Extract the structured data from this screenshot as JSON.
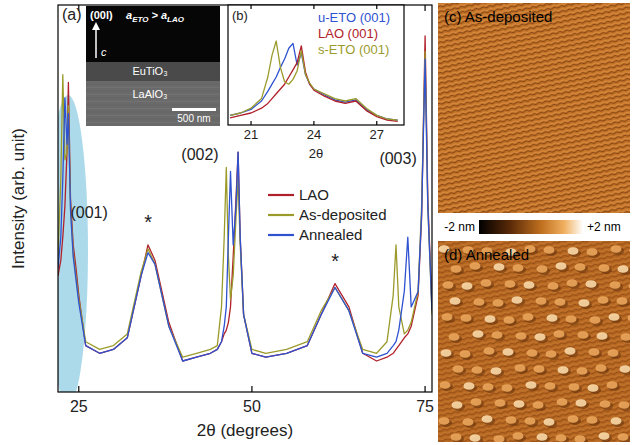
{
  "chart_data": [
    {
      "type": "line",
      "title": "(a)",
      "x_label": "2θ (degrees)",
      "y_label": "Intensity (arb. unit)",
      "xlim": [
        22,
        76
      ],
      "xticks": [
        25,
        50,
        75
      ],
      "ylim": [
        0,
        100
      ],
      "tick_labels": "x",
      "legend": "right",
      "x": [
        22,
        22.4,
        22.7,
        23,
        23.3,
        23.5,
        23.8,
        24.2,
        24.6,
        25,
        26,
        28,
        30,
        32,
        34,
        35,
        36,
        38,
        40,
        42,
        44,
        45,
        45.6,
        46,
        46.3,
        46.6,
        46.9,
        47.3,
        47.7,
        48,
        48.3,
        48.8,
        50,
        52,
        55,
        58,
        60,
        62,
        64,
        66,
        68,
        69.5,
        70.4,
        70.8,
        71.2,
        72,
        72.5,
        73,
        74,
        74.5,
        75,
        75.4,
        76
      ],
      "series": [
        {
          "name": "LAO",
          "color": "#b0202a",
          "values": [
            30,
            34,
            40,
            48,
            62,
            80,
            50,
            38,
            32,
            25,
            12,
            10,
            11,
            14,
            30,
            38,
            34,
            18,
            8,
            9,
            10,
            11,
            13,
            15,
            16,
            18,
            22,
            35,
            50,
            62,
            40,
            20,
            10,
            9,
            10,
            12,
            20,
            28,
            22,
            10,
            8,
            9,
            10,
            11,
            12,
            14,
            15,
            17,
            25,
            45,
            92,
            50,
            22
          ]
        },
        {
          "name": "As-deposited",
          "color": "#9b9b2c",
          "values": [
            35,
            55,
            82,
            60,
            62,
            74,
            48,
            36,
            30,
            24,
            13,
            11,
            12,
            15,
            31,
            37,
            33,
            17,
            9,
            10,
            11,
            12,
            22,
            40,
            58,
            35,
            24,
            30,
            45,
            55,
            38,
            20,
            11,
            10,
            11,
            13,
            21,
            27,
            21,
            11,
            10,
            13,
            25,
            38,
            22,
            15,
            16,
            18,
            26,
            48,
            88,
            48,
            20
          ]
        },
        {
          "name": "Annealed",
          "color": "#2f52d0",
          "values": [
            32,
            40,
            55,
            76,
            64,
            72,
            47,
            35,
            29,
            23,
            12,
            10,
            11,
            14,
            30,
            36,
            33,
            17,
            8,
            9,
            10,
            11,
            13,
            17,
            22,
            40,
            57,
            38,
            48,
            62,
            40,
            20,
            10,
            9,
            10,
            12,
            20,
            27,
            21,
            10,
            9,
            10,
            12,
            13,
            16,
            26,
            40,
            22,
            26,
            46,
            86,
            48,
            21
          ]
        }
      ],
      "annotations": [
        {
          "text": "(001)",
          "x": 26.5,
          "y": 45
        },
        {
          "text": "(002)",
          "x": 42.5,
          "y": 60
        },
        {
          "text": "(003)",
          "x": 71.1,
          "y": 59
        },
        {
          "text": "*",
          "x": 35,
          "y": 42
        },
        {
          "text": "*",
          "x": 62,
          "y": 32
        }
      ],
      "sem_inset": {
        "direction": "(00l)",
        "lattice": {
          "left": "a",
          "left_sub": "ETO",
          "relation": ">",
          "right": "a",
          "right_sub": "LAO"
        },
        "film": "EuTiO₃",
        "substrate": "LaAlO₃",
        "scale_bar": "500 nm",
        "axis": "c"
      }
    },
    {
      "type": "line",
      "title": "(b)",
      "x_label": "2θ",
      "xlim": [
        19.9,
        28.3
      ],
      "xticks": [
        21,
        24,
        27
      ],
      "ylim": [
        0,
        100
      ],
      "tick_labels": "x",
      "legend": "upper right",
      "x": [
        20,
        20.5,
        21,
        21.5,
        21.8,
        22,
        22.2,
        22.4,
        22.6,
        22.8,
        23,
        23.2,
        23.4,
        23.6,
        23.8,
        24,
        24.5,
        25,
        25.5,
        26,
        26.5,
        27,
        27.5,
        28
      ],
      "series": [
        {
          "name": "u-ETO (001)",
          "color": "#2f52d0",
          "values": [
            8,
            10,
            13,
            20,
            28,
            34,
            40,
            48,
            55,
            64,
            68,
            50,
            60,
            42,
            34,
            30,
            25,
            21,
            19,
            21,
            13,
            8,
            5,
            4
          ]
        },
        {
          "name": "LAO (001)",
          "color": "#b0202a",
          "values": [
            6,
            8,
            10,
            14,
            18,
            22,
            26,
            30,
            34,
            40,
            46,
            52,
            66,
            44,
            34,
            29,
            24,
            20,
            18,
            20,
            12,
            7,
            4,
            3
          ]
        },
        {
          "name": "s-ETO (001)",
          "color": "#9b9b2c",
          "values": [
            8,
            10,
            14,
            22,
            40,
            58,
            70,
            48,
            36,
            34,
            38,
            45,
            62,
            42,
            35,
            30,
            26,
            22,
            20,
            22,
            14,
            8,
            5,
            4
          ]
        }
      ]
    }
  ],
  "afm_panels": [
    {
      "label": "(c) As-deposited"
    },
    {
      "label": "(d) Annealed"
    }
  ],
  "colorbar": {
    "range": [
      -2,
      2
    ],
    "ticks": [
      {
        "value": -2,
        "label": "-2 nm"
      },
      {
        "value": 2,
        "label": "+2 nm"
      }
    ]
  }
}
